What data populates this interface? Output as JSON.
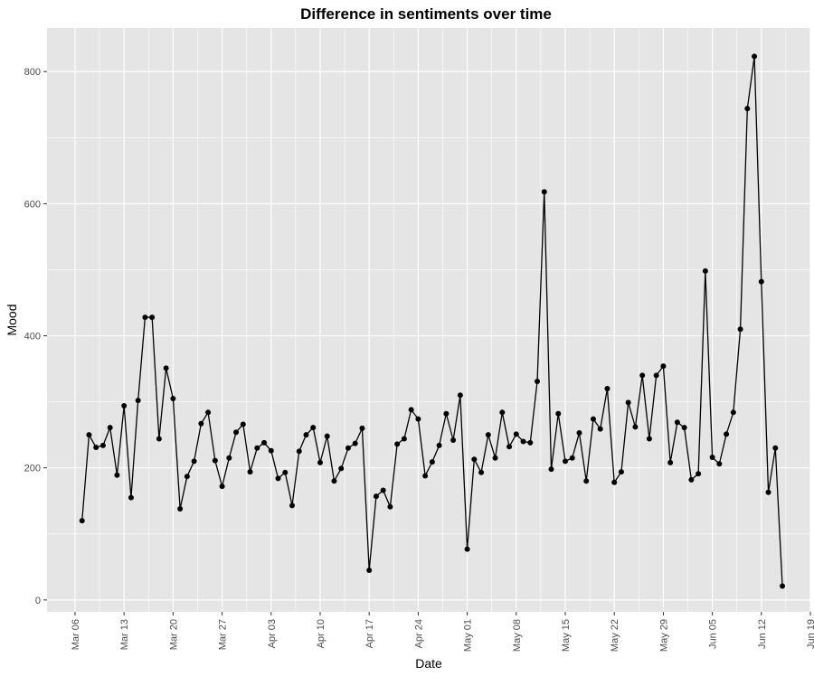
{
  "chart_data": {
    "type": "line",
    "title": "Difference in sentiments over time",
    "xlabel": "Date",
    "ylabel": "Mood",
    "x_ticks": [
      {
        "date": "2020-03-06",
        "label": "Mar 06"
      },
      {
        "date": "2020-03-13",
        "label": "Mar 13"
      },
      {
        "date": "2020-03-20",
        "label": "Mar 20"
      },
      {
        "date": "2020-03-27",
        "label": "Mar 27"
      },
      {
        "date": "2020-04-03",
        "label": "Apr 03"
      },
      {
        "date": "2020-04-10",
        "label": "Apr 10"
      },
      {
        "date": "2020-04-17",
        "label": "Apr 17"
      },
      {
        "date": "2020-04-24",
        "label": "Apr 24"
      },
      {
        "date": "2020-05-01",
        "label": "May 01"
      },
      {
        "date": "2020-05-08",
        "label": "May 08"
      },
      {
        "date": "2020-05-15",
        "label": "May 15"
      },
      {
        "date": "2020-05-22",
        "label": "May 22"
      },
      {
        "date": "2020-05-29",
        "label": "May 29"
      },
      {
        "date": "2020-06-05",
        "label": "Jun 05"
      },
      {
        "date": "2020-06-12",
        "label": "Jun 12"
      },
      {
        "date": "2020-06-19",
        "label": "Jun 19"
      }
    ],
    "y_ticks": [
      0,
      200,
      400,
      600,
      800
    ],
    "xlim": [
      "2020-03-02",
      "2020-06-19"
    ],
    "ylim": [
      -18,
      866
    ],
    "grid": true,
    "panel_background": "#e5e5e5",
    "grid_color": "#ffffff",
    "line_color": "#000000",
    "x": [
      "2020-03-07",
      "2020-03-08",
      "2020-03-09",
      "2020-03-10",
      "2020-03-11",
      "2020-03-12",
      "2020-03-13",
      "2020-03-14",
      "2020-03-15",
      "2020-03-16",
      "2020-03-17",
      "2020-03-18",
      "2020-03-19",
      "2020-03-20",
      "2020-03-21",
      "2020-03-22",
      "2020-03-23",
      "2020-03-24",
      "2020-03-25",
      "2020-03-26",
      "2020-03-27",
      "2020-03-28",
      "2020-03-29",
      "2020-03-30",
      "2020-03-31",
      "2020-04-01",
      "2020-04-02",
      "2020-04-03",
      "2020-04-04",
      "2020-04-05",
      "2020-04-06",
      "2020-04-07",
      "2020-04-08",
      "2020-04-09",
      "2020-04-10",
      "2020-04-11",
      "2020-04-12",
      "2020-04-13",
      "2020-04-14",
      "2020-04-15",
      "2020-04-16",
      "2020-04-17",
      "2020-04-18",
      "2020-04-19",
      "2020-04-20",
      "2020-04-21",
      "2020-04-22",
      "2020-04-23",
      "2020-04-24",
      "2020-04-25",
      "2020-04-26",
      "2020-04-27",
      "2020-04-28",
      "2020-04-29",
      "2020-04-30",
      "2020-05-01",
      "2020-05-02",
      "2020-05-03",
      "2020-05-04",
      "2020-05-05",
      "2020-05-06",
      "2020-05-07",
      "2020-05-08",
      "2020-05-09",
      "2020-05-10",
      "2020-05-11",
      "2020-05-12",
      "2020-05-13",
      "2020-05-14",
      "2020-05-15",
      "2020-05-16",
      "2020-05-17",
      "2020-05-18",
      "2020-05-19",
      "2020-05-20",
      "2020-05-21",
      "2020-05-22",
      "2020-05-23",
      "2020-05-24",
      "2020-05-25",
      "2020-05-26",
      "2020-05-27",
      "2020-05-28",
      "2020-05-29",
      "2020-05-30",
      "2020-05-31",
      "2020-06-01",
      "2020-06-02",
      "2020-06-03",
      "2020-06-04",
      "2020-06-05",
      "2020-06-06",
      "2020-06-07",
      "2020-06-08",
      "2020-06-09",
      "2020-06-10",
      "2020-06-11",
      "2020-06-12",
      "2020-06-13",
      "2020-06-14",
      "2020-06-15"
    ],
    "y": [
      120,
      250,
      231,
      234,
      261,
      189,
      294,
      155,
      302,
      428,
      428,
      244,
      351,
      305,
      138,
      187,
      210,
      267,
      284,
      211,
      172,
      215,
      254,
      266,
      194,
      230,
      238,
      226,
      184,
      193,
      143,
      225,
      250,
      261,
      208,
      248,
      180,
      199,
      230,
      237,
      260,
      45,
      157,
      166,
      141,
      236,
      244,
      288,
      274,
      188,
      209,
      234,
      282,
      242,
      310,
      77,
      213,
      193,
      250,
      215,
      284,
      232,
      251,
      240,
      238,
      331,
      618,
      198,
      282,
      210,
      215,
      253,
      180,
      274,
      259,
      320,
      178,
      194,
      299,
      262,
      340,
      244,
      340,
      354,
      208,
      269,
      261,
      182,
      191,
      498,
      216,
      206,
      251,
      284,
      410,
      744,
      823,
      482,
      163,
      230,
      21
    ]
  }
}
